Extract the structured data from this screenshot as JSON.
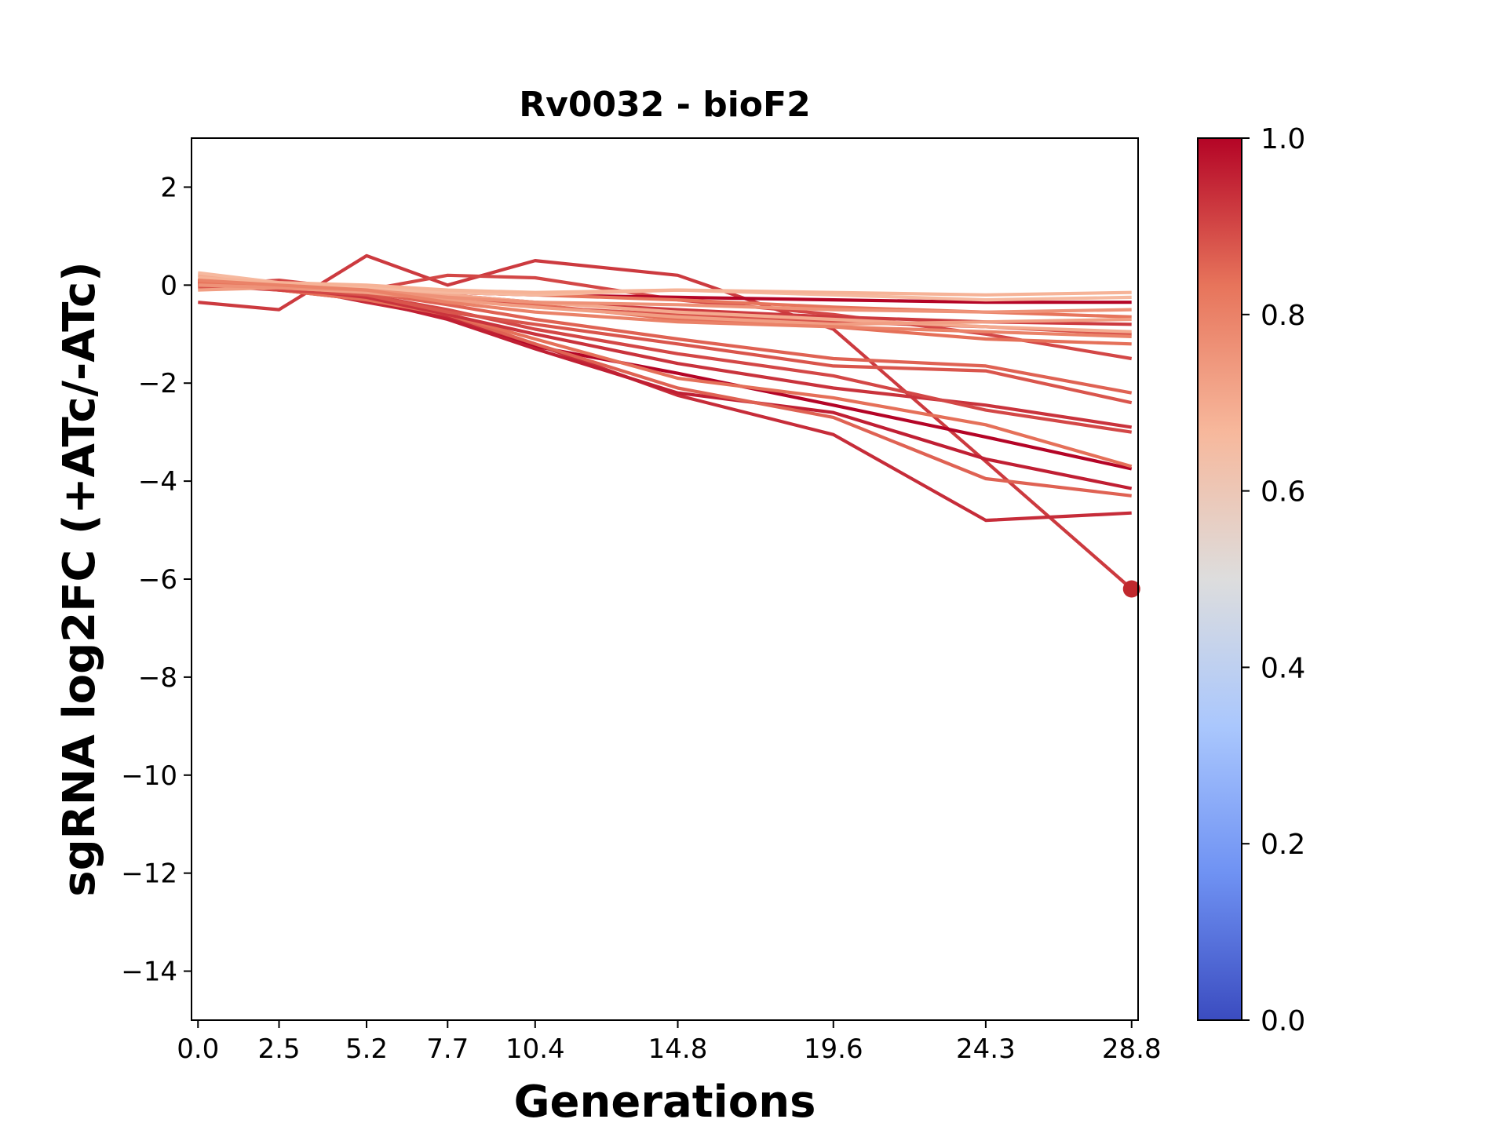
{
  "chart_data": {
    "type": "line",
    "title": "Rv0032 - bioF2",
    "xlabel": "Generations",
    "ylabel": "sgRNA log2FC (+ATc/-ATc)",
    "x": [
      0.0,
      2.5,
      5.2,
      7.7,
      10.4,
      14.8,
      19.6,
      24.3,
      28.8
    ],
    "x_tick_labels": [
      "0.0",
      "2.5",
      "5.2",
      "7.7",
      "10.4",
      "14.8",
      "19.6",
      "24.3",
      "28.8"
    ],
    "xlim": [
      -0.2,
      29.0
    ],
    "ylim": [
      -15,
      3
    ],
    "y_ticks": [
      2,
      0,
      -2,
      -4,
      -6,
      -8,
      -10,
      -12,
      -14
    ],
    "y_tick_labels": [
      "2",
      "0",
      "−2",
      "−4",
      "−6",
      "−8",
      "−10",
      "−12",
      "−14"
    ],
    "grid": false,
    "colorbar": {
      "range": [
        0.0,
        1.0
      ],
      "ticks": [
        0.0,
        0.2,
        0.4,
        0.6,
        0.8,
        1.0
      ],
      "tick_labels": [
        "0.0",
        "0.2",
        "0.4",
        "0.6",
        "0.8",
        "1.0"
      ],
      "colormap": "coolwarm",
      "stops": [
        "#3b4cc0",
        "#6f92f3",
        "#aac7fd",
        "#dddddd",
        "#f7b89c",
        "#e7745b",
        "#b40426"
      ]
    },
    "highlight_point": {
      "x": 28.8,
      "y": -6.2,
      "color": "#c0282d"
    },
    "series": [
      {
        "values": [
          -0.35,
          -0.5,
          0.6,
          0.0,
          0.5,
          0.2,
          -0.9,
          -3.6,
          -6.2
        ],
        "c": 0.92
      },
      {
        "values": [
          0.05,
          -0.05,
          -0.25,
          -0.65,
          -1.25,
          -1.8,
          -2.45,
          -3.1,
          -3.75
        ],
        "c": 1.0
      },
      {
        "values": [
          0.1,
          0.0,
          -0.35,
          -0.65,
          -1.2,
          -2.25,
          -3.05,
          -4.8,
          -4.65
        ],
        "c": 0.94
      },
      {
        "values": [
          0.0,
          -0.1,
          -0.3,
          -0.7,
          -1.3,
          -2.2,
          -2.6,
          -3.55,
          -4.15
        ],
        "c": 0.96
      },
      {
        "values": [
          0.1,
          -0.05,
          -0.2,
          -0.6,
          -1.2,
          -2.1,
          -2.7,
          -3.95,
          -4.3
        ],
        "c": 0.86
      },
      {
        "values": [
          0.05,
          -0.1,
          -0.3,
          -0.6,
          -1.1,
          -1.9,
          -2.3,
          -2.85,
          -3.7
        ],
        "c": 0.84
      },
      {
        "values": [
          0.0,
          -0.05,
          -0.25,
          -0.6,
          -1.0,
          -1.6,
          -2.1,
          -2.45,
          -2.9
        ],
        "c": 0.93
      },
      {
        "values": [
          0.1,
          -0.1,
          -0.2,
          -0.5,
          -0.9,
          -1.4,
          -1.85,
          -2.55,
          -3.0
        ],
        "c": 0.9
      },
      {
        "values": [
          0.0,
          0.0,
          -0.2,
          -0.55,
          -0.8,
          -1.2,
          -1.65,
          -1.75,
          -2.4
        ],
        "c": 0.88
      },
      {
        "values": [
          0.05,
          -0.05,
          -0.15,
          -0.4,
          -0.7,
          -1.1,
          -1.5,
          -1.65,
          -2.2
        ],
        "c": 0.86
      },
      {
        "values": [
          0.0,
          0.1,
          -0.1,
          0.2,
          0.15,
          -0.3,
          -0.6,
          -1.0,
          -1.5
        ],
        "c": 0.9
      },
      {
        "values": [
          0.1,
          -0.05,
          -0.15,
          -0.3,
          -0.4,
          -0.7,
          -0.85,
          -1.1,
          -1.2
        ],
        "c": 0.84
      },
      {
        "values": [
          -0.05,
          -0.05,
          -0.1,
          -0.25,
          -0.45,
          -0.6,
          -0.75,
          -0.85,
          -1.0
        ],
        "c": 0.88
      },
      {
        "values": [
          0.0,
          -0.05,
          -0.05,
          -0.2,
          -0.35,
          -0.5,
          -0.65,
          -0.75,
          -0.8
        ],
        "c": 0.92
      },
      {
        "values": [
          0.05,
          0.0,
          -0.1,
          -0.15,
          -0.2,
          -0.25,
          -0.3,
          -0.35,
          -0.35
        ],
        "c": 1.0
      },
      {
        "values": [
          0.05,
          0.0,
          -0.05,
          -0.15,
          -0.2,
          -0.3,
          -0.45,
          -0.55,
          -0.65
        ],
        "c": 0.83
      },
      {
        "values": [
          0.2,
          0.0,
          -0.05,
          -0.2,
          -0.35,
          -0.55,
          -0.7,
          -0.85,
          -0.95
        ],
        "c": 0.7
      },
      {
        "values": [
          0.25,
          0.05,
          -0.05,
          -0.15,
          -0.2,
          -0.1,
          -0.2,
          -0.3,
          -0.25
        ],
        "c": 0.66
      },
      {
        "values": [
          -0.1,
          -0.05,
          -0.15,
          -0.3,
          -0.45,
          -0.65,
          -0.8,
          -0.75,
          -0.7
        ],
        "c": 0.73
      },
      {
        "values": [
          0.15,
          0.05,
          0.0,
          -0.1,
          -0.15,
          -0.1,
          -0.15,
          -0.2,
          -0.15
        ],
        "c": 0.68
      },
      {
        "values": [
          0.0,
          -0.05,
          -0.1,
          -0.25,
          -0.35,
          -0.4,
          -0.5,
          -0.55,
          -0.5
        ],
        "c": 0.76
      },
      {
        "values": [
          0.1,
          0.0,
          -0.1,
          -0.35,
          -0.55,
          -0.75,
          -0.85,
          -0.95,
          -1.05
        ],
        "c": 0.8
      }
    ]
  }
}
